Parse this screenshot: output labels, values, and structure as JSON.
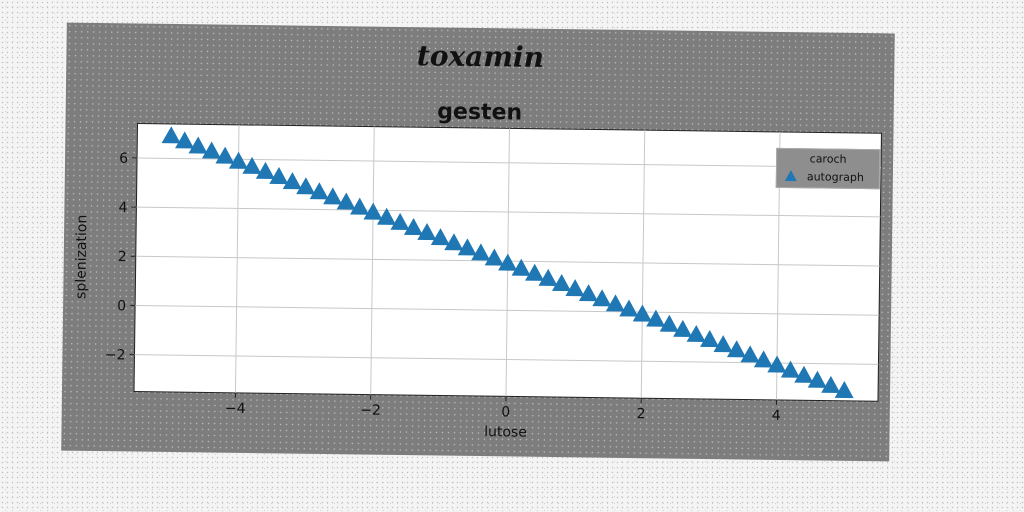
{
  "chart_data": {
    "type": "scatter",
    "suptitle": "toxamin",
    "title": "gesten",
    "xlabel": "lutose",
    "ylabel": "splenization",
    "xlim": [
      -5.5,
      5.5
    ],
    "ylim": [
      -3.5,
      7.4
    ],
    "xticks": [
      -4,
      -2,
      0,
      2,
      4
    ],
    "yticks": [
      -2,
      0,
      2,
      4,
      6
    ],
    "grid": true,
    "legend": {
      "title": "caroch",
      "placement": "top-right",
      "entries": [
        "autograph"
      ]
    },
    "series": [
      {
        "name": "autograph",
        "marker": "triangle-up",
        "color": "#1f77b4",
        "x": [
          -5.0,
          -4.8,
          -4.6,
          -4.4,
          -4.2,
          -4.0,
          -3.8,
          -3.6,
          -3.4,
          -3.2,
          -3.0,
          -2.8,
          -2.6,
          -2.4,
          -2.2,
          -2.0,
          -1.8,
          -1.6,
          -1.4,
          -1.2,
          -1.0,
          -0.8,
          -0.6,
          -0.4,
          -0.2,
          0.0,
          0.2,
          0.4,
          0.6,
          0.8,
          1.0,
          1.2,
          1.4,
          1.6,
          1.8,
          2.0,
          2.2,
          2.4,
          2.6,
          2.8,
          3.0,
          3.2,
          3.4,
          3.6,
          3.8,
          4.0,
          4.2,
          4.4,
          4.6,
          4.8,
          5.0
        ],
        "y": [
          6.9,
          6.7,
          6.5,
          6.3,
          6.1,
          5.9,
          5.7,
          5.5,
          5.3,
          5.1,
          4.9,
          4.7,
          4.5,
          4.3,
          4.1,
          3.9,
          3.7,
          3.5,
          3.3,
          3.1,
          2.9,
          2.7,
          2.5,
          2.3,
          2.1,
          1.9,
          1.7,
          1.5,
          1.3,
          1.1,
          0.9,
          0.7,
          0.5,
          0.3,
          0.1,
          -0.1,
          -0.3,
          -0.5,
          -0.7,
          -0.9,
          -1.1,
          -1.3,
          -1.5,
          -1.7,
          -1.9,
          -2.1,
          -2.3,
          -2.5,
          -2.7,
          -2.9,
          -3.1
        ]
      }
    ]
  }
}
